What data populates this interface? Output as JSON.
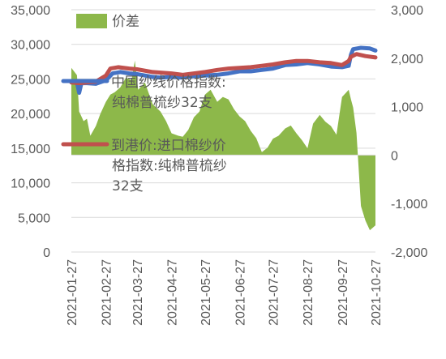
{
  "chart_data": {
    "type": "line",
    "title": "",
    "xlabel": "",
    "ylabel": "",
    "x_tick_labels": [
      "2021-01-27",
      "2021-02-27",
      "2021-03-27",
      "2021-04-27",
      "2021-05-27",
      "2021-06-27",
      "2021-07-27",
      "2021-08-27",
      "2021-09-27",
      "2021-10-27"
    ],
    "y_left": {
      "range": [
        0,
        35000
      ],
      "ticks": [
        "0",
        "5,000",
        "10,000",
        "15,000",
        "20,000",
        "25,000",
        "30,000",
        "35,000"
      ]
    },
    "y_right": {
      "range": [
        -2000,
        3000
      ],
      "ticks": [
        "-2,000",
        "-1,000",
        "0",
        "1,000",
        "2,000",
        "3,000"
      ]
    },
    "grid": "horizontal",
    "legend_position": "inside-left",
    "series": [
      {
        "name": "价差",
        "type": "area",
        "axis": "right",
        "color": "#8DB84A",
        "x": [
          "2021-01-27",
          "2021-02-01",
          "2021-02-03",
          "2021-02-07",
          "2021-02-10",
          "2021-02-13",
          "2021-02-18",
          "2021-02-22",
          "2021-02-27",
          "2021-03-03",
          "2021-03-07",
          "2021-03-12",
          "2021-03-17",
          "2021-03-22",
          "2021-03-25",
          "2021-03-28",
          "2021-04-03",
          "2021-04-10",
          "2021-04-17",
          "2021-04-22",
          "2021-04-27",
          "2021-05-03",
          "2021-05-07",
          "2021-05-12",
          "2021-05-17",
          "2021-05-22",
          "2021-05-27",
          "2021-06-01",
          "2021-06-07",
          "2021-06-12",
          "2021-06-17",
          "2021-06-22",
          "2021-06-27",
          "2021-07-02",
          "2021-07-07",
          "2021-07-12",
          "2021-07-17",
          "2021-07-22",
          "2021-07-27",
          "2021-08-01",
          "2021-08-07",
          "2021-08-12",
          "2021-08-17",
          "2021-08-22",
          "2021-08-27",
          "2021-09-01",
          "2021-09-07",
          "2021-09-12",
          "2021-09-17",
          "2021-09-22",
          "2021-09-27",
          "2021-10-01",
          "2021-10-03",
          "2021-10-05",
          "2021-10-07",
          "2021-10-10",
          "2021-10-14",
          "2021-10-18",
          "2021-10-22",
          "2021-10-27"
        ],
        "values": [
          1800,
          1650,
          900,
          700,
          750,
          400,
          600,
          850,
          1100,
          1250,
          1300,
          1400,
          1600,
          1550,
          1950,
          1350,
          1500,
          1050,
          900,
          700,
          450,
          400,
          380,
          520,
          780,
          900,
          1250,
          1350,
          1100,
          1200,
          1150,
          950,
          800,
          700,
          500,
          350,
          60,
          150,
          340,
          400,
          550,
          610,
          450,
          310,
          140,
          650,
          830,
          690,
          600,
          420,
          1200,
          1300,
          1350,
          1150,
          980,
          460,
          -1050,
          -1350,
          -1550,
          -1450
        ]
      },
      {
        "name": "中国纱线价格指数:纯棉普梳纱32支",
        "type": "line",
        "axis": "left",
        "color": "#4472C4",
        "x": [
          "2021-01-27",
          "2021-02-01",
          "2021-02-03",
          "2021-02-05",
          "2021-02-10",
          "2021-02-18",
          "2021-02-27",
          "2021-03-05",
          "2021-03-12",
          "2021-03-20",
          "2021-03-27",
          "2021-04-03",
          "2021-04-10",
          "2021-04-17",
          "2021-04-27",
          "2021-05-07",
          "2021-05-17",
          "2021-05-27",
          "2021-06-07",
          "2021-06-17",
          "2021-06-27",
          "2021-07-07",
          "2021-07-17",
          "2021-07-27",
          "2021-08-07",
          "2021-08-17",
          "2021-08-27",
          "2021-09-07",
          "2021-09-17",
          "2021-09-27",
          "2021-10-03",
          "2021-10-05",
          "2021-10-07",
          "2021-10-14",
          "2021-10-22",
          "2021-10-27"
        ],
        "values": [
          24500,
          24500,
          23000,
          24400,
          24400,
          24300,
          24800,
          25800,
          26000,
          25800,
          25700,
          25500,
          25300,
          25200,
          25300,
          25200,
          25400,
          25500,
          25600,
          25800,
          26100,
          26100,
          26300,
          26500,
          27000,
          27100,
          27300,
          27100,
          26800,
          26700,
          26900,
          28500,
          29300,
          29500,
          29400,
          29100
        ]
      },
      {
        "name": "到港价:进口棉纱价格指数:纯棉普梳纱32支",
        "type": "line",
        "axis": "left",
        "color": "#C0504D",
        "x": [
          "2021-01-27",
          "2021-02-03",
          "2021-02-10",
          "2021-02-18",
          "2021-02-27",
          "2021-03-03",
          "2021-03-10",
          "2021-03-20",
          "2021-03-27",
          "2021-04-10",
          "2021-04-27",
          "2021-05-07",
          "2021-05-17",
          "2021-05-27",
          "2021-06-07",
          "2021-06-17",
          "2021-06-27",
          "2021-07-07",
          "2021-07-17",
          "2021-07-27",
          "2021-08-07",
          "2021-08-17",
          "2021-08-27",
          "2021-09-07",
          "2021-09-17",
          "2021-09-27",
          "2021-10-03",
          "2021-10-05",
          "2021-10-10",
          "2021-10-18",
          "2021-10-27"
        ],
        "values": [
          24500,
          24400,
          24500,
          24600,
          25500,
          26500,
          26700,
          26500,
          26400,
          26000,
          25800,
          25600,
          25800,
          26000,
          26300,
          26500,
          26600,
          26700,
          26900,
          27100,
          27400,
          27600,
          27600,
          27400,
          27300,
          27000,
          27600,
          28200,
          28600,
          28300,
          28100
        ]
      }
    ]
  }
}
